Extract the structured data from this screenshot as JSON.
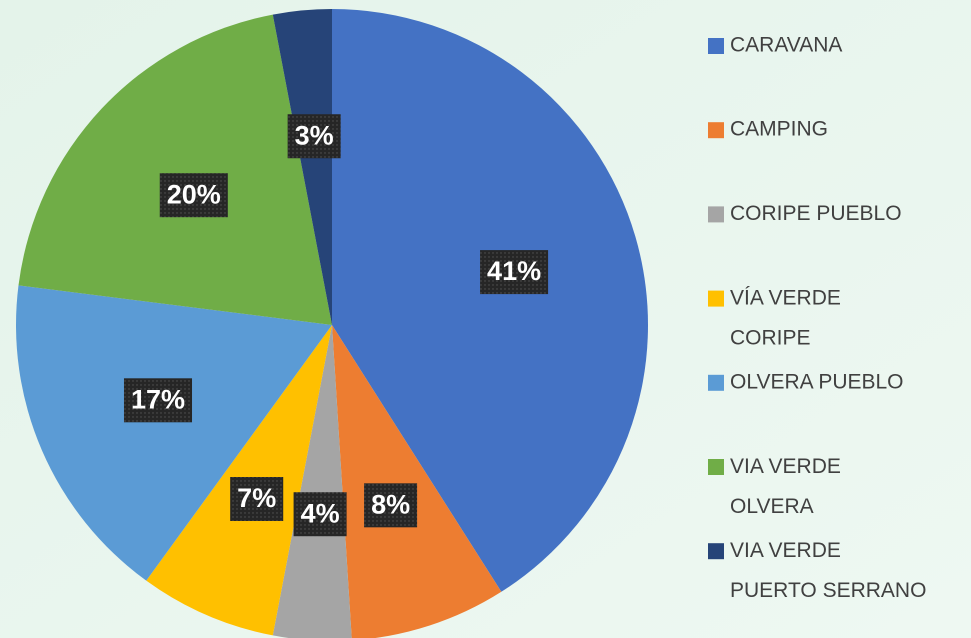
{
  "chart_data": {
    "type": "pie",
    "categories": [
      "CARAVANA",
      "CAMPING",
      "CORIPE PUEBLO",
      "VÍA VERDE CORIPE",
      "OLVERA PUEBLO",
      "VIA VERDE OLVERA",
      "VIA VERDE PUERTO SERRANO"
    ],
    "values": [
      41,
      8,
      4,
      7,
      17,
      20,
      3
    ],
    "value_labels": [
      "41%",
      "8%",
      "4%",
      "7%",
      "17%",
      "20%",
      "3%"
    ],
    "colors": [
      "#4472c4",
      "#ed7d31",
      "#a5a5a5",
      "#ffc000",
      "#5b9bd5",
      "#70ad47",
      "#264478"
    ],
    "legend": "right"
  }
}
